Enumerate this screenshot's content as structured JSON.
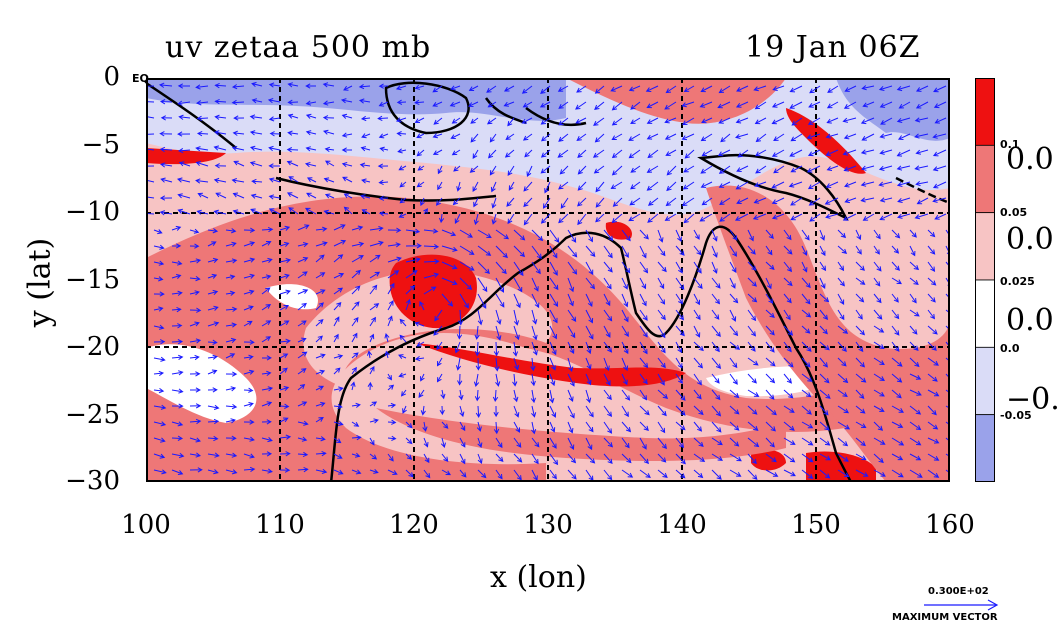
{
  "title": {
    "left": "uv zetaa 500 mb",
    "right": "19 Jan 06Z"
  },
  "axes": {
    "xlabel": "x (lon)",
    "ylabel": "y (lat)",
    "x_ticks": [
      "100",
      "110",
      "120",
      "130",
      "140",
      "150",
      "160"
    ],
    "y_ticks": [
      "0",
      "−5",
      "−10",
      "−15",
      "−20",
      "−25",
      "−30"
    ],
    "xlim": [
      100,
      160
    ],
    "ylim": [
      -30,
      0
    ],
    "grid_x": [
      110,
      120,
      130,
      140,
      150
    ],
    "grid_y": [
      -10,
      -20
    ],
    "equator_label": "EQ"
  },
  "colorbar": {
    "colors": [
      "#ee1111",
      "#ee7777",
      "#f7c4c4",
      "#ffffff",
      "#dadcf7",
      "#9aa2ea"
    ],
    "small_labels": [
      "0.1",
      "0.05",
      "0.025",
      "0.0",
      "-0.05"
    ],
    "big_labels": [
      "0.0",
      "0.0",
      "0.0",
      "−0."
    ]
  },
  "vector_key": {
    "magnitude": "0.300E+02",
    "label": "MAXIMUM VECTOR",
    "color": "#1a1aff"
  },
  "map_colors": {
    "strong_pos": "#ee1111",
    "mid_pos": "#ee7777",
    "light_pos": "#f7c4c4",
    "neutral": "#ffffff",
    "light_neg": "#dadcf7",
    "strong_neg": "#9aa2ea",
    "coast": "#000000",
    "vectors": "#1a1aff"
  }
}
